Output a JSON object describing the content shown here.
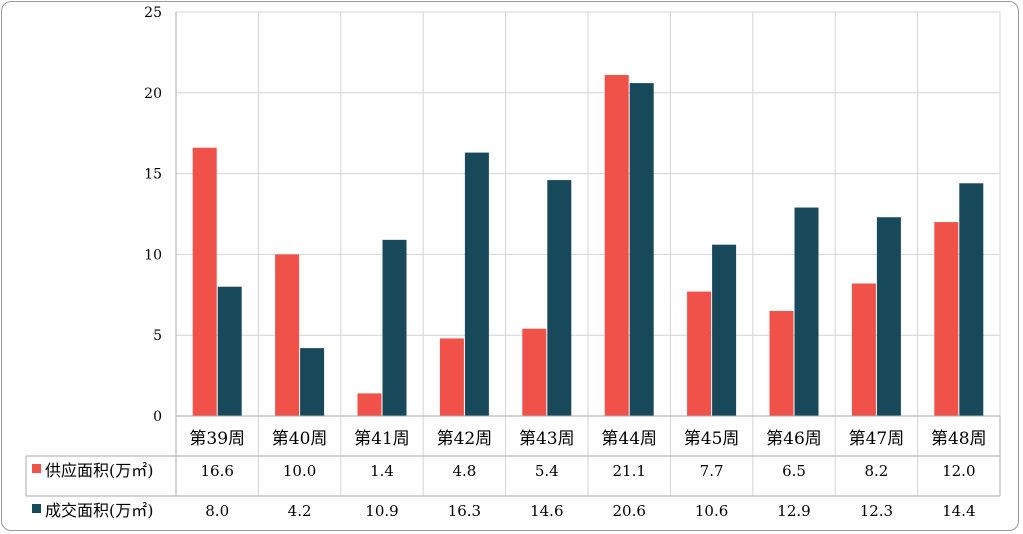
{
  "chart_data": {
    "type": "bar",
    "categories": [
      "第39周",
      "第40周",
      "第41周",
      "第42周",
      "第43周",
      "第44周",
      "第45周",
      "第46周",
      "第47周",
      "第48周"
    ],
    "series": [
      {
        "name": "供应面积(万㎡)",
        "values": [
          16.6,
          10.0,
          1.4,
          4.8,
          5.4,
          21.1,
          7.7,
          6.5,
          8.2,
          12.0
        ],
        "color": "#f0524a"
      },
      {
        "name": "成交面积(万㎡)",
        "values": [
          8.0,
          4.2,
          10.9,
          16.3,
          14.6,
          20.6,
          10.6,
          12.9,
          12.3,
          14.4
        ],
        "color": "#17495a"
      }
    ],
    "table_values": [
      [
        "16.6",
        "10.0",
        "1.4",
        "4.8",
        "5.4",
        "21.1",
        "7.7",
        "6.5",
        "8.2",
        "12.0"
      ],
      [
        "8.0",
        "4.2",
        "10.9",
        "16.3",
        "14.6",
        "20.6",
        "10.6",
        "12.9",
        "12.3",
        "14.4"
      ]
    ],
    "ylim": [
      0,
      25
    ],
    "yticks": [
      "0",
      "5",
      "10",
      "15",
      "20",
      "25"
    ],
    "grid": true,
    "legend": "data-table-left"
  }
}
